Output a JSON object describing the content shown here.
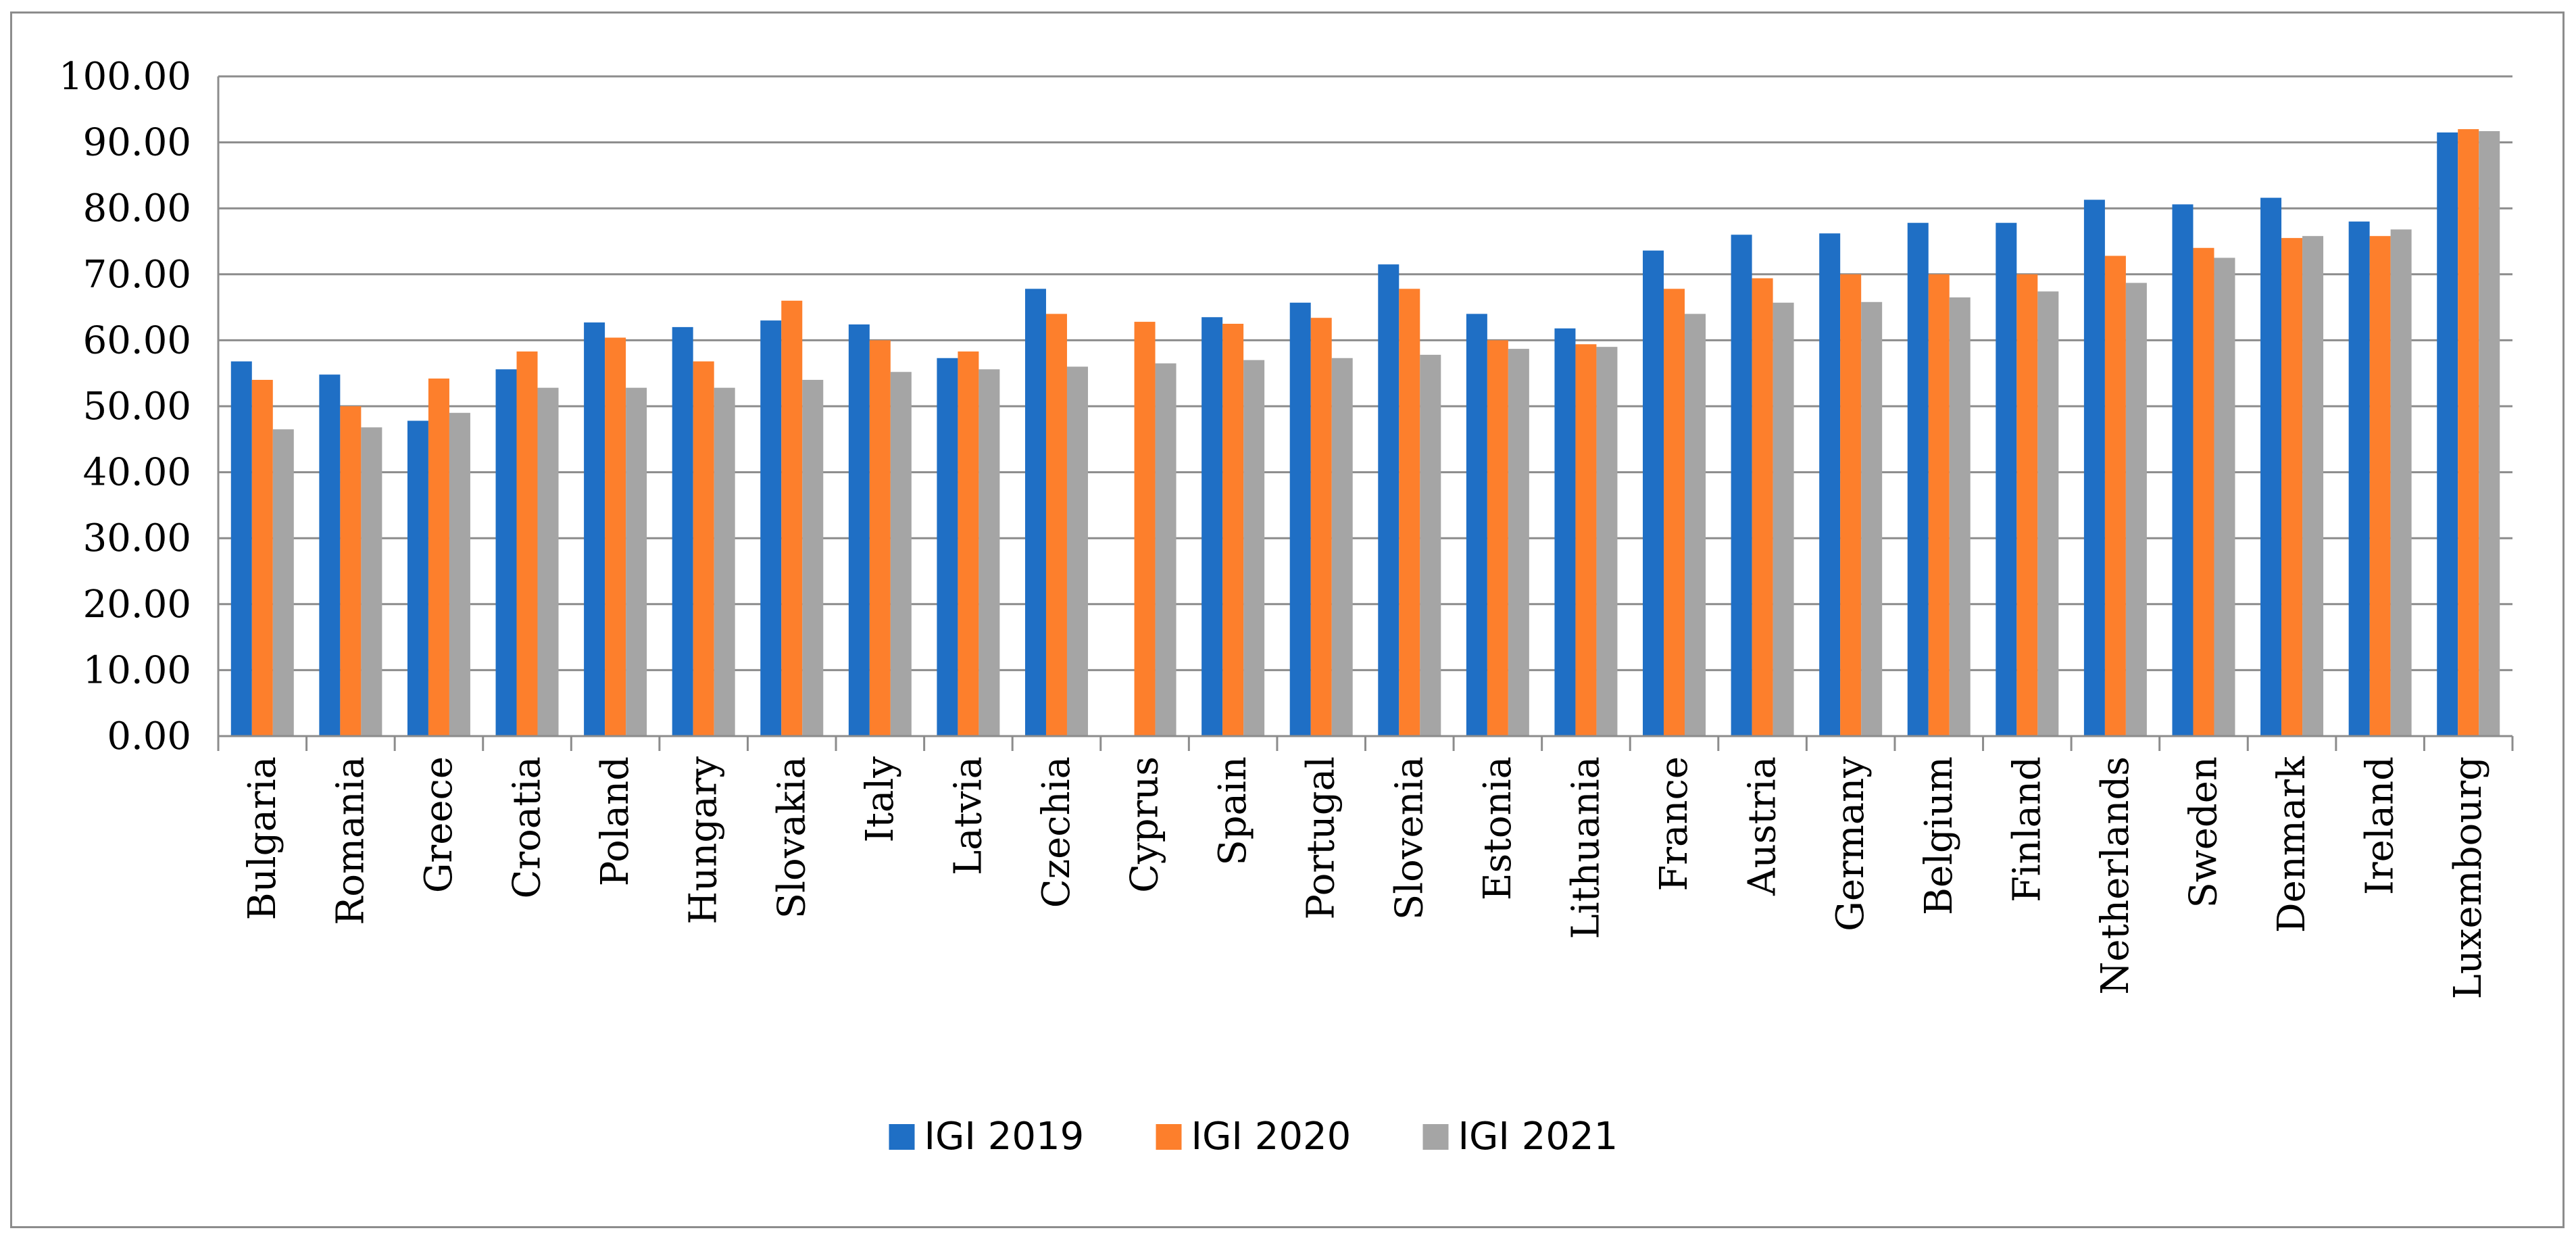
{
  "chart_data": {
    "type": "bar",
    "title": "",
    "xlabel": "",
    "ylabel": "",
    "ylim": [
      0,
      100
    ],
    "y_ticks": [
      "0.00",
      "10.00",
      "20.00",
      "30.00",
      "40.00",
      "50.00",
      "60.00",
      "70.00",
      "80.00",
      "90.00",
      "100.00"
    ],
    "grid": true,
    "legend_position": "bottom-center",
    "categories": [
      "Bulgaria",
      "Romania",
      "Greece",
      "Croatia",
      "Poland",
      "Hungary",
      "Slovakia",
      "Italy",
      "Latvia",
      "Czechia",
      "Cyprus",
      "Spain",
      "Portugal",
      "Slovenia",
      "Estonia",
      "Lithuania",
      "France",
      "Austria",
      "Germany",
      "Belgium",
      "Finland",
      "Netherlands",
      "Sweden",
      "Denmark",
      "Ireland",
      "Luxembourg"
    ],
    "series": [
      {
        "name": "IGI 2019",
        "color": "#1f6fc5",
        "values": [
          56.8,
          54.8,
          47.8,
          55.6,
          62.7,
          62.0,
          63.0,
          62.4,
          57.3,
          67.8,
          null,
          63.5,
          65.7,
          71.5,
          64.0,
          61.8,
          73.6,
          76.0,
          76.2,
          77.8,
          77.8,
          81.3,
          80.6,
          81.6,
          78.0,
          91.5
        ]
      },
      {
        "name": "IGI 2020",
        "color": "#fd7f2c",
        "values": [
          54.0,
          50.0,
          54.2,
          58.3,
          60.4,
          56.8,
          66.0,
          60.0,
          58.3,
          64.0,
          62.8,
          62.5,
          63.4,
          67.8,
          60.0,
          59.4,
          67.8,
          69.4,
          70.0,
          70.0,
          70.0,
          72.8,
          74.0,
          75.5,
          75.8,
          92.0
        ]
      },
      {
        "name": "IGI 2021",
        "color": "#a5a5a5",
        "values": [
          46.5,
          46.8,
          49.0,
          52.8,
          52.8,
          52.8,
          54.0,
          55.2,
          55.6,
          56.0,
          56.5,
          57.0,
          57.3,
          57.8,
          58.7,
          59.0,
          64.0,
          65.7,
          65.8,
          66.5,
          67.4,
          68.7,
          72.5,
          75.8,
          76.8,
          91.7
        ]
      }
    ]
  }
}
